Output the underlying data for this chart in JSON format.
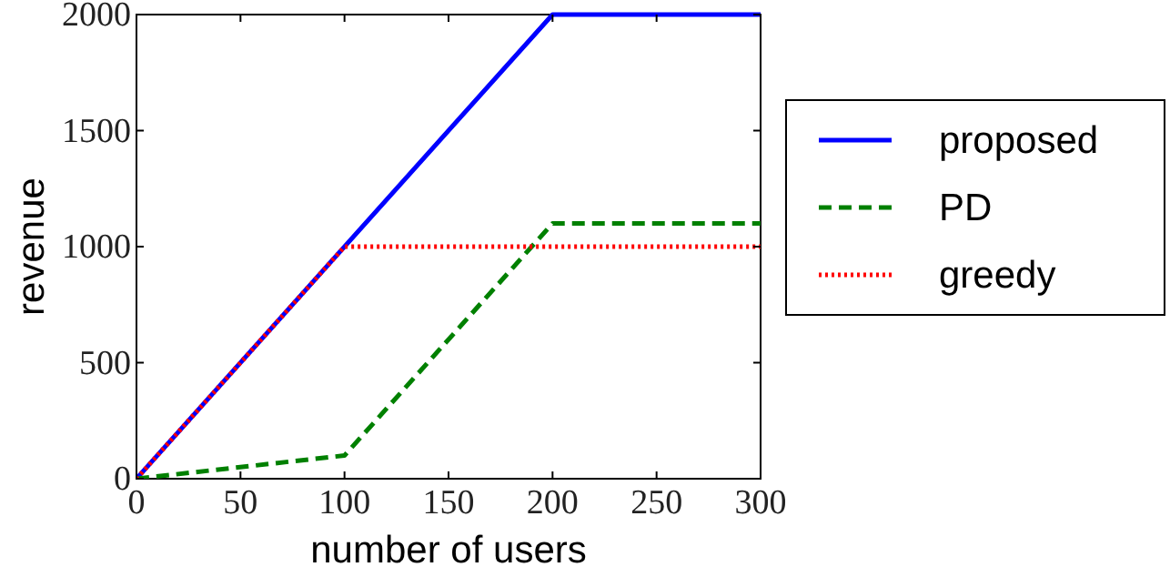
{
  "chart_data": {
    "type": "line",
    "xlabel": "number of users",
    "ylabel": "revenue",
    "xlim": [
      0,
      300
    ],
    "ylim": [
      0,
      2000
    ],
    "xticks": [
      0,
      50,
      100,
      150,
      200,
      250,
      300
    ],
    "yticks": [
      0,
      500,
      1000,
      1500,
      2000
    ],
    "grid": false,
    "legend": "right",
    "marker": "none",
    "series": [
      {
        "name": "proposed",
        "color": "#0000ff",
        "line_style": "solid",
        "x": [
          0,
          200,
          300
        ],
        "values": [
          0,
          2000,
          2000
        ]
      },
      {
        "name": "PD",
        "color": "#008000",
        "line_style": "dashed",
        "x": [
          0,
          100,
          200,
          300
        ],
        "values": [
          0,
          100,
          1100,
          1100
        ]
      },
      {
        "name": "greedy",
        "color": "#ff0000",
        "line_style": "dotted",
        "x": [
          0,
          100,
          300
        ],
        "values": [
          0,
          1000,
          1000
        ]
      }
    ]
  }
}
